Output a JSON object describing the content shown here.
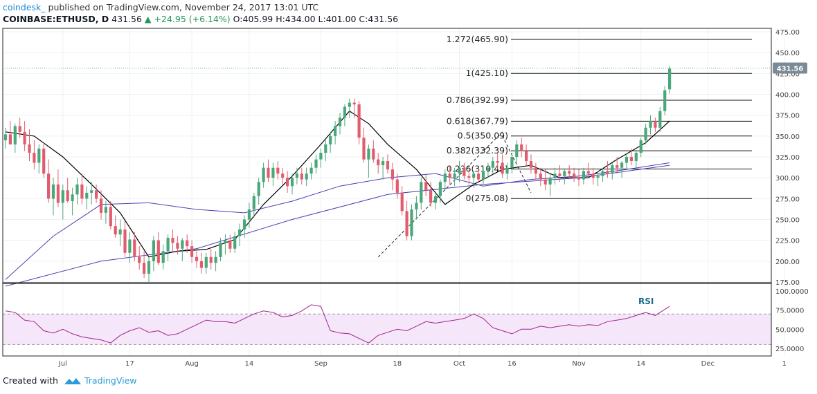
{
  "header": {
    "author": "coindesk_",
    "published": "published on TradingView.com, November 24, 2017 13:01 UTC",
    "symbol": "COINBASE:ETHUSD, D",
    "last": "431.56",
    "change": "+24.95 (+6.14%)",
    "ohlc": "O:405.99 H:434.00 L:401.00 C:431.56"
  },
  "footer": {
    "created_with": "Created with",
    "brand": "TradingView"
  },
  "colors": {
    "up": "#4aa77a",
    "down": "#e25c6e",
    "sma_fast": "#000000",
    "sma_slow": "#4a3fb0",
    "rsi": "#a0208a",
    "rsi_band": "#f6e6fa",
    "price_badge": "#7b8a97"
  },
  "chart_data": [
    {
      "type": "candlestick",
      "title": "COINBASE:ETHUSD, D",
      "ylim": [
        175,
        480
      ],
      "y_ticks": [
        "475.00",
        "450.00",
        "425.00",
        "400.00",
        "375.00",
        "350.00",
        "325.00",
        "300.00",
        "275.00",
        "250.00",
        "225.00",
        "200.00",
        "175.00"
      ],
      "x_ticks": [
        "Jul",
        "17",
        "Aug",
        "14",
        "Sep",
        "18",
        "Oct",
        "16",
        "Nov",
        "14",
        "Dec",
        "1"
      ],
      "last_price_label": "431.56",
      "fib_levels": [
        {
          "label": "1.272(465.90)",
          "value": 465.9
        },
        {
          "label": "1(425.10)",
          "value": 425.1
        },
        {
          "label": "0.786(392.99)",
          "value": 392.99
        },
        {
          "label": "0.618(367.79)",
          "value": 367.79
        },
        {
          "label": "0.5(350.09)",
          "value": 350.09
        },
        {
          "label": "0.382(332.39)",
          "value": 332.39
        },
        {
          "label": "0.236(310.49)",
          "value": 310.49
        },
        {
          "label": "0(275.08)",
          "value": 275.08
        }
      ],
      "candles": [
        [
          345,
          360,
          335,
          352
        ],
        [
          352,
          368,
          340,
          340
        ],
        [
          340,
          365,
          330,
          362
        ],
        [
          362,
          372,
          348,
          355
        ],
        [
          355,
          368,
          332,
          340
        ],
        [
          340,
          358,
          320,
          330
        ],
        [
          330,
          345,
          310,
          318
        ],
        [
          318,
          340,
          305,
          335
        ],
        [
          335,
          342,
          300,
          305
        ],
        [
          305,
          322,
          270,
          275
        ],
        [
          275,
          300,
          255,
          292
        ],
        [
          292,
          310,
          265,
          270
        ],
        [
          270,
          292,
          250,
          285
        ],
        [
          285,
          300,
          270,
          272
        ],
        [
          272,
          288,
          255,
          280
        ],
        [
          280,
          300,
          268,
          292
        ],
        [
          292,
          305,
          268,
          275
        ],
        [
          275,
          290,
          262,
          282
        ],
        [
          282,
          295,
          268,
          285
        ],
        [
          285,
          292,
          270,
          275
        ],
        [
          275,
          285,
          250,
          258
        ],
        [
          258,
          272,
          245,
          265
        ],
        [
          265,
          272,
          238,
          242
        ],
        [
          242,
          255,
          228,
          232
        ],
        [
          232,
          250,
          218,
          238
        ],
        [
          238,
          248,
          205,
          210
        ],
        [
          210,
          235,
          198,
          226
        ],
        [
          226,
          235,
          200,
          205
        ],
        [
          205,
          218,
          190,
          198
        ],
        [
          198,
          212,
          180,
          185
        ],
        [
          185,
          205,
          175,
          200
        ],
        [
          200,
          230,
          188,
          225
        ],
        [
          225,
          235,
          195,
          198
        ],
        [
          198,
          220,
          190,
          212
        ],
        [
          212,
          232,
          200,
          228
        ],
        [
          228,
          238,
          210,
          222
        ],
        [
          222,
          230,
          208,
          215
        ],
        [
          215,
          228,
          200,
          225
        ],
        [
          225,
          232,
          210,
          218
        ],
        [
          218,
          225,
          198,
          205
        ],
        [
          205,
          212,
          192,
          200
        ],
        [
          200,
          210,
          185,
          192
        ],
        [
          192,
          210,
          185,
          205
        ],
        [
          205,
          215,
          190,
          198
        ],
        [
          198,
          212,
          188,
          205
        ],
        [
          205,
          228,
          200,
          222
        ],
        [
          222,
          232,
          208,
          225
        ],
        [
          225,
          232,
          210,
          215
        ],
        [
          215,
          235,
          210,
          230
        ],
        [
          230,
          245,
          218,
          238
        ],
        [
          238,
          255,
          228,
          250
        ],
        [
          250,
          270,
          240,
          262
        ],
        [
          262,
          282,
          252,
          278
        ],
        [
          278,
          300,
          268,
          295
        ],
        [
          295,
          318,
          288,
          312
        ],
        [
          312,
          322,
          295,
          300
        ],
        [
          300,
          318,
          290,
          312
        ],
        [
          312,
          320,
          298,
          305
        ],
        [
          305,
          312,
          292,
          300
        ],
        [
          300,
          308,
          282,
          290
        ],
        [
          290,
          305,
          280,
          300
        ],
        [
          300,
          312,
          292,
          305
        ],
        [
          305,
          312,
          292,
          298
        ],
        [
          298,
          312,
          290,
          305
        ],
        [
          305,
          318,
          298,
          312
        ],
        [
          312,
          328,
          305,
          322
        ],
        [
          322,
          335,
          312,
          330
        ],
        [
          330,
          345,
          320,
          340
        ],
        [
          340,
          355,
          330,
          350
        ],
        [
          350,
          368,
          340,
          362
        ],
        [
          362,
          378,
          352,
          372
        ],
        [
          372,
          388,
          362,
          385
        ],
        [
          385,
          395,
          372,
          390
        ],
        [
          390,
          395,
          372,
          388
        ],
        [
          388,
          392,
          340,
          348
        ],
        [
          348,
          360,
          318,
          322
        ],
        [
          322,
          340,
          300,
          335
        ],
        [
          335,
          345,
          318,
          322
        ],
        [
          322,
          330,
          305,
          315
        ],
        [
          315,
          325,
          298,
          320
        ],
        [
          320,
          328,
          305,
          310
        ],
        [
          310,
          318,
          285,
          298
        ],
        [
          298,
          305,
          275,
          282
        ],
        [
          282,
          290,
          255,
          260
        ],
        [
          260,
          272,
          225,
          230
        ],
        [
          230,
          268,
          225,
          262
        ],
        [
          262,
          278,
          250,
          270
        ],
        [
          270,
          300,
          262,
          295
        ],
        [
          295,
          305,
          278,
          285
        ],
        [
          285,
          295,
          265,
          270
        ],
        [
          270,
          282,
          262,
          278
        ],
        [
          278,
          298,
          270,
          295
        ],
        [
          295,
          310,
          285,
          305
        ],
        [
          305,
          315,
          292,
          300
        ],
        [
          300,
          312,
          290,
          305
        ],
        [
          305,
          320,
          295,
          312
        ],
        [
          312,
          318,
          298,
          302
        ],
        [
          302,
          310,
          292,
          300
        ],
        [
          300,
          308,
          288,
          305
        ],
        [
          305,
          312,
          295,
          298
        ],
        [
          298,
          312,
          292,
          308
        ],
        [
          308,
          318,
          300,
          312
        ],
        [
          312,
          325,
          305,
          320
        ],
        [
          320,
          330,
          310,
          318
        ],
        [
          318,
          328,
          300,
          305
        ],
        [
          305,
          318,
          298,
          312
        ],
        [
          312,
          330,
          305,
          325
        ],
        [
          325,
          345,
          318,
          340
        ],
        [
          340,
          348,
          325,
          332
        ],
        [
          332,
          340,
          315,
          320
        ],
        [
          320,
          328,
          305,
          312
        ],
        [
          312,
          318,
          298,
          305
        ],
        [
          305,
          312,
          290,
          298
        ],
        [
          298,
          310,
          285,
          292
        ],
        [
          292,
          305,
          278,
          300
        ],
        [
          300,
          312,
          292,
          305
        ],
        [
          305,
          315,
          295,
          302
        ],
        [
          302,
          310,
          292,
          308
        ],
        [
          308,
          315,
          298,
          305
        ],
        [
          305,
          312,
          295,
          300
        ],
        [
          300,
          310,
          290,
          298
        ],
        [
          298,
          312,
          292,
          308
        ],
        [
          308,
          318,
          300,
          305
        ],
        [
          305,
          312,
          292,
          300
        ],
        [
          300,
          308,
          290,
          302
        ],
        [
          302,
          312,
          295,
          308
        ],
        [
          308,
          320,
          300,
          305
        ],
        [
          305,
          318,
          298,
          315
        ],
        [
          315,
          325,
          305,
          312
        ],
        [
          312,
          320,
          300,
          318
        ],
        [
          318,
          330,
          310,
          325
        ],
        [
          325,
          335,
          315,
          320
        ],
        [
          320,
          332,
          312,
          330
        ],
        [
          330,
          348,
          325,
          345
        ],
        [
          345,
          365,
          340,
          360
        ],
        [
          360,
          375,
          352,
          368
        ],
        [
          368,
          372,
          355,
          360
        ],
        [
          360,
          385,
          355,
          380
        ],
        [
          380,
          410,
          375,
          405
        ],
        [
          406,
          434,
          401,
          431
        ]
      ],
      "sma_fast_x": [
        0,
        6,
        12,
        18,
        24,
        30,
        36,
        42,
        48,
        54,
        60,
        66,
        72,
        76,
        80,
        86,
        92,
        98,
        104,
        110,
        116,
        122,
        128,
        134,
        139
      ],
      "sma_fast": [
        355,
        350,
        325,
        292,
        258,
        205,
        212,
        214,
        226,
        268,
        302,
        340,
        380,
        365,
        340,
        310,
        268,
        292,
        310,
        315,
        300,
        300,
        322,
        342,
        368
      ],
      "sma_slow_x": [
        0,
        10,
        20,
        30,
        40,
        50,
        60,
        70,
        80,
        90,
        100,
        110,
        120,
        130,
        139
      ],
      "sma_slow": [
        178,
        230,
        268,
        270,
        262,
        258,
        272,
        290,
        300,
        305,
        290,
        298,
        302,
        310,
        318
      ],
      "sma_mid_x": [
        0,
        20,
        40,
        60,
        80,
        100,
        120,
        139
      ],
      "sma_mid": [
        170,
        200,
        215,
        250,
        280,
        292,
        300,
        315
      ],
      "trend_line": {
        "from": [
          78,
          205
        ],
        "to": [
          104,
          355
        ]
      },
      "trend_line2": {
        "from": [
          104,
          350
        ],
        "to": [
          110,
          282
        ]
      }
    },
    {
      "type": "line",
      "title": "RSI",
      "ylim": [
        15,
        110
      ],
      "y_ticks": [
        "100.0000",
        "75.0000",
        "50.0000",
        "25.0000"
      ],
      "band": [
        30,
        70
      ],
      "x": [
        0,
        2,
        4,
        6,
        8,
        10,
        12,
        14,
        16,
        18,
        20,
        22,
        24,
        26,
        28,
        30,
        32,
        34,
        36,
        38,
        40,
        42,
        44,
        46,
        48,
        50,
        52,
        54,
        56,
        58,
        60,
        62,
        64,
        66,
        68,
        70,
        72,
        74,
        76,
        78,
        80,
        82,
        84,
        86,
        88,
        90,
        92,
        94,
        96,
        98,
        100,
        102,
        104,
        106,
        108,
        110,
        112,
        114,
        116,
        118,
        120,
        122,
        124,
        126,
        128,
        130,
        132,
        134,
        136,
        138,
        139
      ],
      "values": [
        74,
        72,
        62,
        60,
        48,
        45,
        50,
        44,
        40,
        38,
        36,
        32,
        42,
        48,
        52,
        46,
        48,
        42,
        44,
        50,
        56,
        62,
        60,
        60,
        58,
        64,
        70,
        74,
        72,
        66,
        68,
        74,
        82,
        80,
        48,
        45,
        44,
        38,
        32,
        42,
        46,
        50,
        48,
        54,
        60,
        58,
        60,
        62,
        64,
        70,
        64,
        52,
        48,
        44,
        50,
        50,
        54,
        52,
        54,
        56,
        54,
        56,
        55,
        60,
        62,
        64,
        68,
        72,
        68,
        76,
        80
      ]
    }
  ]
}
